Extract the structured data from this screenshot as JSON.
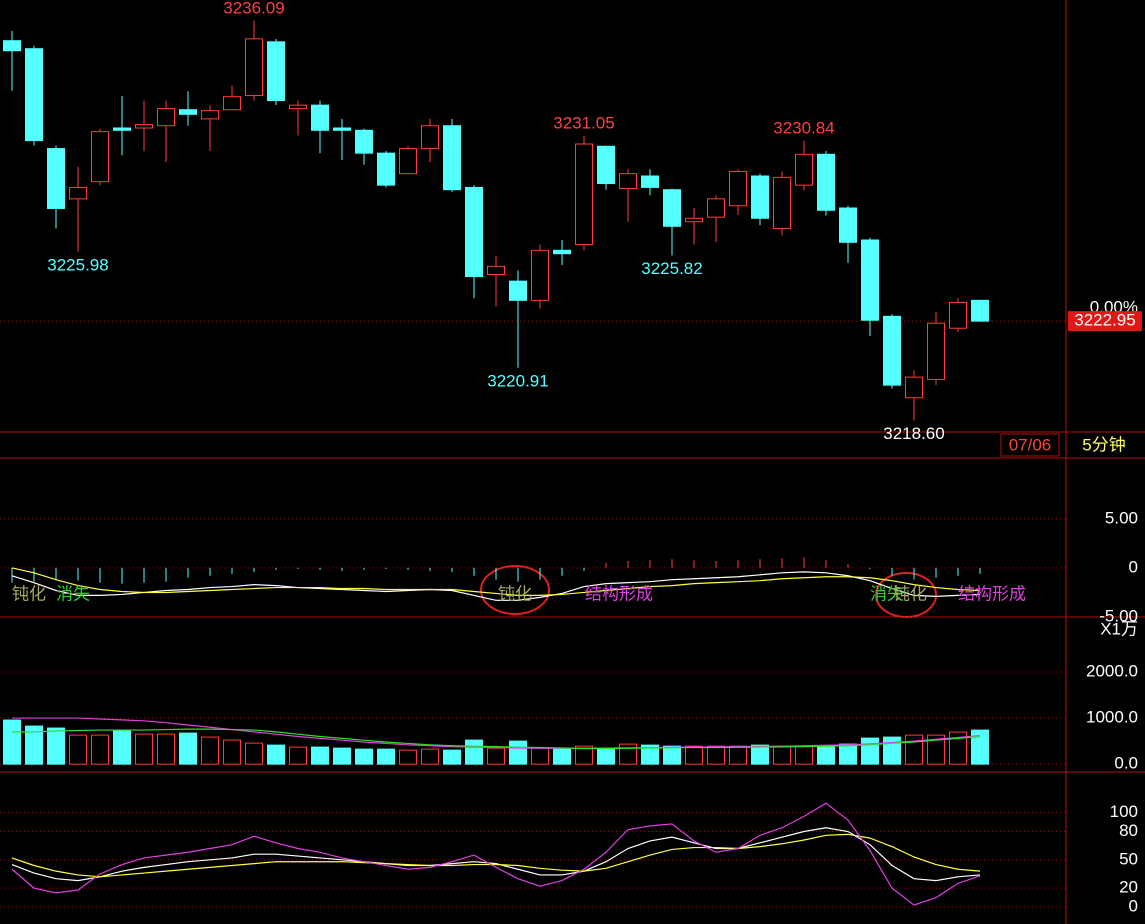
{
  "chart_data": [
    {
      "type": "candlestick",
      "open": [
        3235.22,
        3234.87,
        3230.5,
        3228.3,
        3229.05,
        3231.4,
        3231.4,
        3231.5,
        3232.2,
        3231.8,
        3232.2,
        3232.82,
        3235.17,
        3232.25,
        3232.4,
        3231.4,
        3231.3,
        3230.3,
        3229.4,
        3230.5,
        3231.5,
        3228.8,
        3224.99,
        3224.7,
        3223.86,
        3226.05,
        3226.3,
        3230.6,
        3228.75,
        3229.3,
        3228.7,
        3227.3,
        3227.5,
        3228.0,
        3229.3,
        3227.0,
        3228.9,
        3230.25,
        3227.9,
        3226.5,
        3223.16,
        3219.6,
        3220.4,
        3222.64,
        3223.86
      ],
      "high": [
        3235.65,
        3235.0,
        3230.63,
        3229.7,
        3231.37,
        3232.8,
        3232.6,
        3232.6,
        3233.0,
        3232.4,
        3233.25,
        3236.09,
        3235.3,
        3232.6,
        3232.6,
        3231.8,
        3231.37,
        3230.4,
        3230.6,
        3231.8,
        3231.8,
        3228.9,
        3225.8,
        3225.17,
        3226.3,
        3226.5,
        3231.05,
        3230.63,
        3229.6,
        3229.6,
        3228.75,
        3227.9,
        3228.45,
        3229.6,
        3229.4,
        3229.5,
        3230.84,
        3230.4,
        3228.0,
        3226.6,
        3223.25,
        3220.8,
        3223.34,
        3223.95,
        3223.86
      ],
      "low": [
        3233.03,
        3230.63,
        3227.0,
        3225.98,
        3228.9,
        3230.2,
        3230.4,
        3229.9,
        3231.5,
        3230.4,
        3232.16,
        3232.6,
        3232.4,
        3231.07,
        3230.3,
        3230.0,
        3229.8,
        3228.8,
        3229.4,
        3229.9,
        3228.6,
        3223.95,
        3223.6,
        3220.91,
        3223.5,
        3225.4,
        3226.05,
        3228.7,
        3227.3,
        3228.45,
        3225.82,
        3226.3,
        3226.4,
        3227.6,
        3227.15,
        3226.7,
        3228.67,
        3227.57,
        3225.5,
        3222.3,
        3220.0,
        3218.6,
        3220.15,
        3222.47,
        3222.95
      ],
      "close": [
        3234.78,
        3230.85,
        3227.88,
        3228.8,
        3231.24,
        3231.3,
        3231.55,
        3232.25,
        3232.0,
        3232.16,
        3232.77,
        3235.3,
        3232.6,
        3232.4,
        3231.3,
        3231.3,
        3230.3,
        3228.9,
        3230.5,
        3231.5,
        3228.7,
        3224.9,
        3225.35,
        3223.86,
        3226.05,
        3225.9,
        3230.7,
        3228.97,
        3229.4,
        3228.8,
        3227.1,
        3227.45,
        3228.3,
        3229.5,
        3227.45,
        3229.24,
        3230.25,
        3227.8,
        3226.4,
        3222.99,
        3220.15,
        3220.5,
        3222.86,
        3223.77,
        3222.95
      ],
      "up_color": "#ff3b3b",
      "down_color": "#54ffff",
      "ylim": [
        3218.1,
        3237.0
      ],
      "annotations": [
        {
          "value": 3236.09,
          "label": "3236.09",
          "color": "#ff4040"
        },
        {
          "value": 3225.98,
          "label": "3225.98",
          "color": "#54ffff"
        },
        {
          "value": 3231.05,
          "label": "3231.05",
          "color": "#ff4040"
        },
        {
          "value": 3220.91,
          "label": "3220.91",
          "color": "#54ffff"
        },
        {
          "value": 3225.82,
          "label": "3225.82",
          "color": "#54ffff"
        },
        {
          "value": 3230.84,
          "label": "3230.84",
          "color": "#ff4040"
        },
        {
          "value": 3218.6,
          "label": "3218.60",
          "color": "#ffffff"
        }
      ],
      "last_price": {
        "value": 3222.95,
        "label": "3222.95"
      },
      "change_label": "0.00%",
      "date_label": "07/06",
      "period_label": "5分钟"
    },
    {
      "type": "macd",
      "ylim": [
        -5,
        11.2
      ],
      "yticks": [
        {
          "value": 5,
          "label": "5.00"
        },
        0,
        {
          "value": -5,
          "label": "-5.00"
        }
      ],
      "values": [
        -1.5,
        -1.4,
        -1.2,
        -1.3,
        -1.5,
        -1.6,
        -1.5,
        -1.4,
        -1.0,
        -0.8,
        -0.6,
        -0.4,
        -0.2,
        -0.1,
        -0.2,
        -0.3,
        -0.2,
        -0.1,
        -0.2,
        -0.3,
        -0.4,
        -0.8,
        -1.2,
        -1.4,
        -1.2,
        -0.8,
        -0.3,
        0.5,
        0.7,
        0.8,
        0.9,
        0.8,
        0.7,
        0.8,
        0.9,
        1.0,
        1.1,
        0.8,
        0.4,
        -0.1,
        -0.8,
        -1.2,
        -1.0,
        -0.8,
        -0.6
      ],
      "series": [
        {
          "color": "#ffffff",
          "values": [
            -0.8,
            -1.5,
            -2.3,
            -2.8,
            -2.8,
            -2.7,
            -2.5,
            -2.3,
            -2.2,
            -2.0,
            -1.9,
            -1.7,
            -1.8,
            -2.0,
            -2.1,
            -2.2,
            -2.3,
            -2.4,
            -2.3,
            -2.2,
            -2.3,
            -2.8,
            -3.3,
            -3.3,
            -3.0,
            -2.6,
            -1.9,
            -1.6,
            -1.5,
            -1.4,
            -1.2,
            -1.1,
            -1.0,
            -0.9,
            -0.7,
            -0.5,
            -0.4,
            -0.5,
            -0.8,
            -1.3,
            -2.1,
            -2.8,
            -2.9,
            -2.8,
            -2.7
          ]
        },
        {
          "color": "#ffff44",
          "values": [
            0.0,
            -0.5,
            -1.2,
            -1.8,
            -2.2,
            -2.4,
            -2.5,
            -2.5,
            -2.4,
            -2.3,
            -2.2,
            -2.1,
            -2.0,
            -2.0,
            -2.0,
            -2.1,
            -2.1,
            -2.2,
            -2.2,
            -2.2,
            -2.2,
            -2.4,
            -2.6,
            -2.8,
            -2.8,
            -2.7,
            -2.5,
            -2.3,
            -2.1,
            -1.9,
            -1.8,
            -1.6,
            -1.5,
            -1.4,
            -1.3,
            -1.1,
            -1.0,
            -0.9,
            -0.9,
            -1.0,
            -1.3,
            -1.7,
            -2.0,
            -2.2,
            -2.3
          ]
        }
      ],
      "annotations": [
        {
          "text": "钝化",
          "color": "#a8a860"
        },
        {
          "text": "消失",
          "color": "#30d030"
        },
        {
          "text": "钝化",
          "color": "#a8a860"
        },
        {
          "text": "结构形成",
          "color": "#e040e0"
        },
        {
          "text": "消失",
          "color": "#30d030"
        },
        {
          "text": "钝化",
          "color": "#a8a860"
        },
        {
          "text": "结构形成",
          "color": "#e040e0"
        }
      ]
    },
    {
      "type": "volume",
      "unit_label": "X1万",
      "ylim": [
        -170,
        3170
      ],
      "yticks": [
        {
          "value": 0,
          "label": "0.0"
        },
        {
          "value": 1000,
          "label": "1000.0"
        },
        {
          "value": 2000,
          "label": "2000.0"
        }
      ],
      "values": [
        957,
        826,
        783,
        630,
        630,
        739,
        652,
        652,
        674,
        587,
        522,
        457,
        413,
        370,
        370,
        348,
        326,
        326,
        304,
        326,
        304,
        522,
        348,
        500,
        348,
        348,
        391,
        348,
        435,
        413,
        391,
        391,
        391,
        391,
        413,
        391,
        391,
        391,
        435,
        565,
        587,
        630,
        630,
        696,
        739
      ],
      "series": [
        {
          "color": "#e040e0",
          "values": [
            1000,
            1000,
            1000,
            1000,
            980,
            960,
            940,
            900,
            850,
            800,
            750,
            700,
            650,
            600,
            560,
            520,
            480,
            450,
            420,
            400,
            380,
            370,
            360,
            350,
            345,
            345,
            345,
            350,
            355,
            360,
            365,
            370,
            375,
            380,
            385,
            390,
            400,
            410,
            420,
            440,
            470,
            500,
            540,
            580,
            620
          ]
        },
        {
          "color": "#30e030",
          "values": [
            700,
            700,
            720,
            730,
            740,
            740,
            740,
            750,
            760,
            760,
            750,
            740,
            700,
            650,
            600,
            560,
            520,
            480,
            450,
            420,
            400,
            390,
            380,
            370,
            360,
            350,
            340,
            340,
            345,
            350,
            355,
            360,
            360,
            365,
            370,
            375,
            380,
            390,
            400,
            420,
            450,
            480,
            520,
            560,
            600
          ]
        }
      ]
    },
    {
      "type": "kdj",
      "ylim": [
        -18,
        142
      ],
      "yticks": [
        100,
        80,
        50,
        20,
        0
      ],
      "series": [
        {
          "color": "#ffffff",
          "values": [
            45,
            36,
            30,
            28,
            32,
            38,
            42,
            45,
            48,
            50,
            52,
            56,
            56,
            54,
            52,
            50,
            48,
            46,
            44,
            44,
            46,
            48,
            46,
            40,
            34,
            34,
            38,
            48,
            62,
            70,
            74,
            68,
            62,
            62,
            68,
            74,
            80,
            84,
            80,
            66,
            44,
            30,
            28,
            32,
            34
          ]
        },
        {
          "color": "#ffff44",
          "values": [
            52,
            44,
            38,
            34,
            32,
            34,
            36,
            38,
            40,
            42,
            44,
            46,
            48,
            48,
            48,
            48,
            47,
            46,
            45,
            44,
            44,
            45,
            45,
            44,
            41,
            39,
            38,
            41,
            48,
            55,
            61,
            63,
            63,
            62,
            64,
            67,
            71,
            76,
            77,
            73,
            64,
            53,
            45,
            40,
            38
          ]
        },
        {
          "color": "#e040e0",
          "values": [
            40,
            20,
            15,
            18,
            35,
            45,
            52,
            55,
            58,
            62,
            66,
            75,
            68,
            62,
            58,
            52,
            48,
            44,
            40,
            42,
            48,
            55,
            42,
            30,
            22,
            28,
            40,
            58,
            82,
            86,
            88,
            70,
            58,
            62,
            76,
            84,
            96,
            110,
            92,
            60,
            20,
            2,
            10,
            25,
            33
          ]
        }
      ]
    }
  ]
}
